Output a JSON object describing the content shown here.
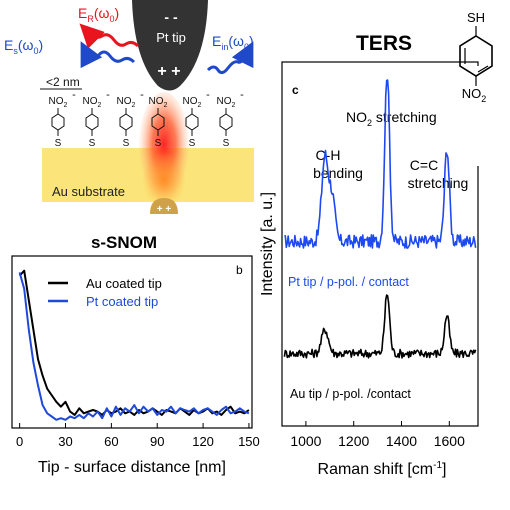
{
  "schematic": {
    "tip_label": "Pt tip",
    "tip_minus": "-  -",
    "tip_plus": "+ +",
    "substrate_label": "Au substrate",
    "gap_label": "<2 nm",
    "incident_label": "E",
    "incident_sub": "in",
    "incident_arg": "(ω",
    "incident_arg_sub": "0",
    "incident_close": ")",
    "rayleigh_label": "E",
    "rayleigh_sub": "R",
    "rayleigh_arg": "(ω",
    "rayleigh_arg_sub": "0",
    "rayleigh_close": ")",
    "scattered_label": "E",
    "scattered_sub": "s",
    "scattered_arg": "(ω",
    "scattered_arg_sub": "0",
    "scattered_close": ")",
    "molecule_group": "NO",
    "molecule_group_sub": "2",
    "molecule_anchor": "S",
    "image_charge": "+ +",
    "tip_charge_dash": "-",
    "colors": {
      "incident": "#1f49c9",
      "rayleigh": "#e8141e",
      "substrate": "#fbe57a",
      "tip": "#333333"
    }
  },
  "molecule_inset": {
    "top_label": "SH",
    "bottom_label": "NO",
    "bottom_sub": "2"
  },
  "chart_data": [
    {
      "type": "line",
      "title": "s-SNOM",
      "panel_label": "b",
      "xlabel": "Tip - surface distance [nm]",
      "ylabel": "",
      "xlim": [
        -5,
        152
      ],
      "ylim": [
        0,
        1.05
      ],
      "xticks": [
        0,
        30,
        60,
        90,
        120,
        150
      ],
      "legend_position": "top-right",
      "series": [
        {
          "name": "Au coated tip",
          "color": "#000000",
          "x": [
            0,
            3,
            6,
            9,
            12,
            15,
            18,
            21,
            24,
            27,
            30,
            33,
            36,
            39,
            42,
            45,
            48,
            51,
            54,
            57,
            60,
            63,
            66,
            69,
            72,
            75,
            78,
            81,
            84,
            87,
            90,
            93,
            96,
            99,
            102,
            105,
            108,
            111,
            114,
            117,
            120,
            123,
            126,
            129,
            132,
            135,
            138,
            141,
            144,
            147,
            150
          ],
          "y": [
            0.93,
            0.96,
            0.78,
            0.6,
            0.42,
            0.32,
            0.24,
            0.2,
            0.16,
            0.13,
            0.16,
            0.1,
            0.08,
            0.12,
            0.09,
            0.1,
            0.11,
            0.1,
            0.08,
            0.11,
            0.09,
            0.1,
            0.12,
            0.09,
            0.1,
            0.08,
            0.11,
            0.09,
            0.1,
            0.12,
            0.1,
            0.08,
            0.11,
            0.1,
            0.09,
            0.12,
            0.1,
            0.08,
            0.11,
            0.09,
            0.1,
            0.12,
            0.09,
            0.1,
            0.08,
            0.11,
            0.13,
            0.09,
            0.1,
            0.09,
            0.11
          ]
        },
        {
          "name": "Pt coated tip",
          "color": "#1f49d9",
          "x": [
            0,
            3,
            6,
            9,
            12,
            15,
            18,
            21,
            24,
            27,
            30,
            33,
            36,
            39,
            42,
            45,
            48,
            51,
            54,
            57,
            60,
            63,
            66,
            69,
            72,
            75,
            78,
            81,
            84,
            87,
            90,
            93,
            96,
            99,
            102,
            105,
            108,
            111,
            114,
            117,
            120,
            123,
            126,
            129,
            132,
            135,
            138,
            141,
            144,
            147,
            150
          ],
          "y": [
            0.95,
            0.85,
            0.6,
            0.4,
            0.26,
            0.14,
            0.09,
            0.07,
            0.05,
            0.06,
            0.05,
            0.07,
            0.06,
            0.08,
            0.06,
            0.09,
            0.07,
            0.1,
            0.06,
            0.12,
            0.07,
            0.13,
            0.08,
            0.12,
            0.1,
            0.14,
            0.09,
            0.13,
            0.1,
            0.12,
            0.08,
            0.11,
            0.1,
            0.13,
            0.09,
            0.12,
            0.11,
            0.1,
            0.12,
            0.09,
            0.11,
            0.12,
            0.1,
            0.08,
            0.11,
            0.13,
            0.09,
            0.1,
            0.12,
            0.1,
            0.09
          ]
        }
      ]
    },
    {
      "type": "line",
      "title": "TERS",
      "panel_label": "c",
      "xlabel": "Raman shift [cm",
      "xlabel_sup": "-1",
      "xlabel_end": "]",
      "ylabel": "Intensity [a. u.]",
      "xlim": [
        900,
        1720
      ],
      "xticks": [
        1000,
        1200,
        1400,
        1600
      ],
      "annotations": [
        {
          "text": "NO",
          "sub": "2",
          "after": " stretching",
          "x": 1335
        },
        {
          "text": "C-H",
          "line2": "bending",
          "x": 1082
        },
        {
          "text": "C=C",
          "line2": "stretching",
          "x": 1590
        }
      ],
      "series": [
        {
          "name": "Pt tip / p-pol. / contact",
          "color": "#1f49f0",
          "peaks": [
            [
              1080,
              0.5,
              14
            ],
            [
              1110,
              0.25,
              12
            ],
            [
              1340,
              1.0,
              10
            ],
            [
              1590,
              0.55,
              10
            ]
          ],
          "baseline": 0.05
        },
        {
          "name": "Au tip / p-pol. /contact",
          "color": "#000000",
          "peaks": [
            [
              1080,
              0.22,
              14
            ],
            [
              1340,
              0.55,
              10
            ],
            [
              1590,
              0.35,
              10
            ]
          ],
          "baseline": 0.15
        }
      ]
    }
  ]
}
